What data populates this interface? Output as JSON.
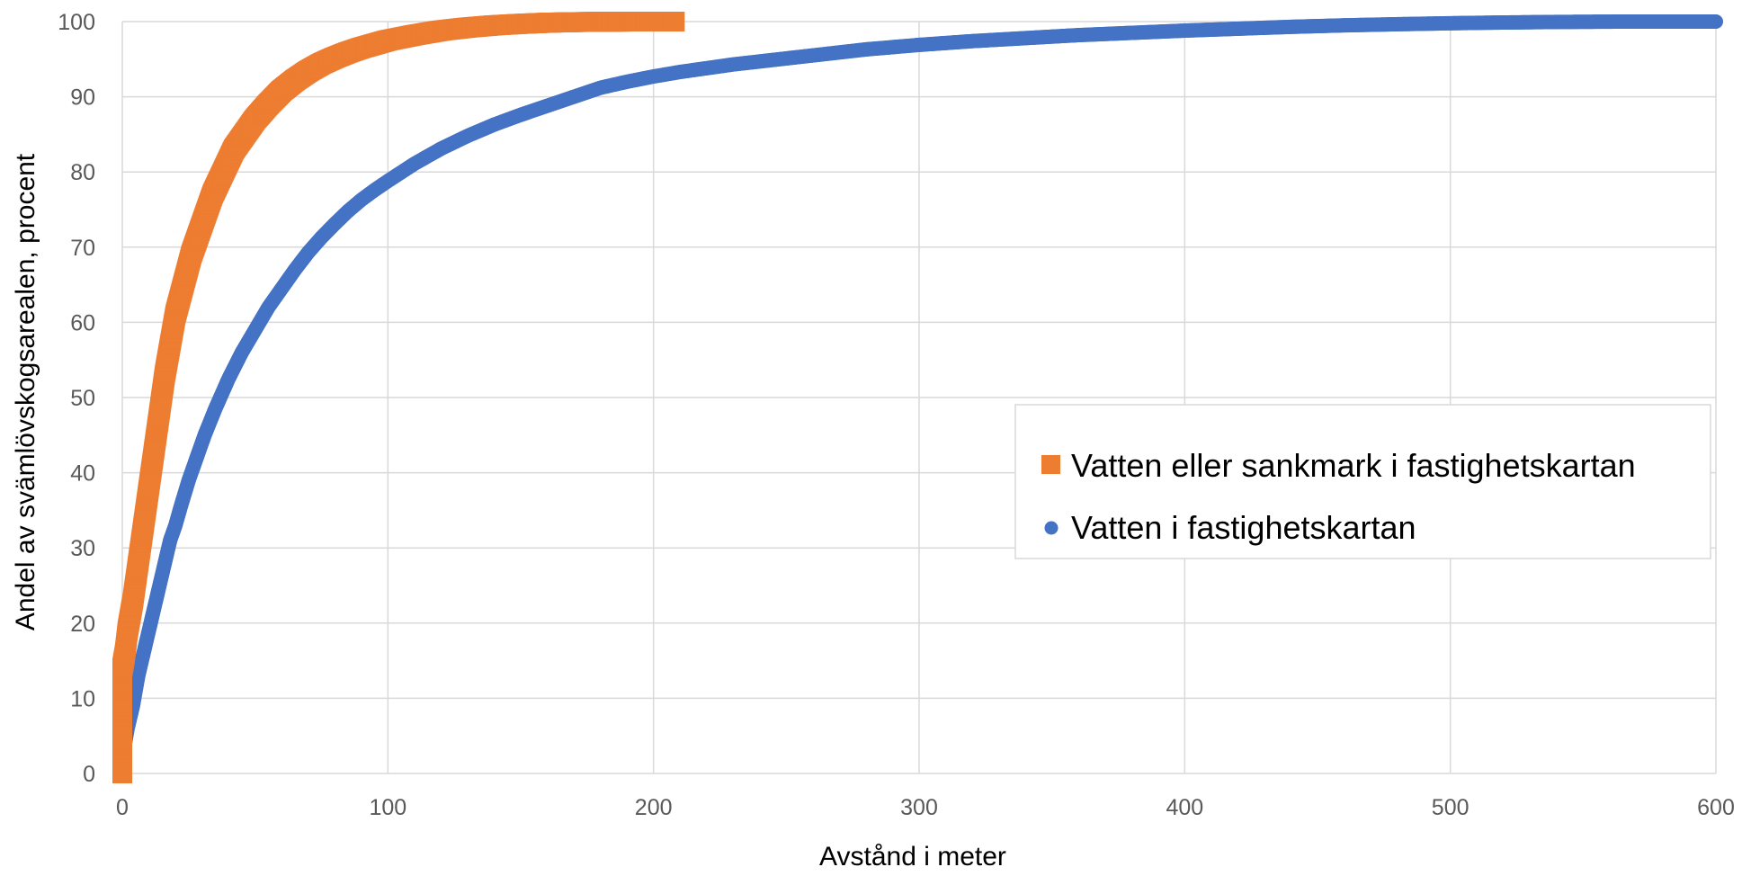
{
  "chart_data": {
    "type": "scatter",
    "title": "",
    "xlabel": "Avstånd i meter",
    "ylabel": "Andel av svämlövskogsarealen, procent",
    "xlim": [
      0,
      600
    ],
    "ylim": [
      0,
      100
    ],
    "x_ticks": [
      0,
      100,
      200,
      300,
      400,
      500,
      600
    ],
    "y_ticks": [
      0,
      10,
      20,
      30,
      40,
      50,
      60,
      70,
      80,
      90,
      100
    ],
    "x_tick_labels": [
      "0",
      "100",
      "200",
      "300",
      "400",
      "500",
      "600"
    ],
    "y_tick_labels": [
      "0",
      "10",
      "20",
      "30",
      "40",
      "50",
      "60",
      "70",
      "80",
      "90",
      "100"
    ],
    "grid": true,
    "legend_position": "center-right",
    "series": [
      {
        "name": "Vatten eller sankmark i fastighetskartan",
        "marker": "square",
        "color": "#ED7D31",
        "points": [
          [
            0,
            0
          ],
          [
            0,
            5
          ],
          [
            0,
            10
          ],
          [
            0,
            14
          ],
          [
            1,
            16
          ],
          [
            2,
            19
          ],
          [
            4,
            23
          ],
          [
            6,
            28
          ],
          [
            8,
            33
          ],
          [
            10,
            38
          ],
          [
            12,
            43
          ],
          [
            14,
            48
          ],
          [
            16,
            53
          ],
          [
            18,
            57
          ],
          [
            20,
            61
          ],
          [
            23,
            65
          ],
          [
            26,
            69
          ],
          [
            30,
            73
          ],
          [
            34,
            77
          ],
          [
            38,
            80
          ],
          [
            42,
            83
          ],
          [
            46,
            85
          ],
          [
            50,
            87
          ],
          [
            55,
            89
          ],
          [
            60,
            90.8
          ],
          [
            65,
            92.2
          ],
          [
            70,
            93.4
          ],
          [
            75,
            94.4
          ],
          [
            80,
            95.2
          ],
          [
            85,
            95.9
          ],
          [
            90,
            96.5
          ],
          [
            95,
            97
          ],
          [
            100,
            97.5
          ],
          [
            110,
            98.2
          ],
          [
            120,
            98.8
          ],
          [
            130,
            99.2
          ],
          [
            140,
            99.5
          ],
          [
            150,
            99.7
          ],
          [
            160,
            99.85
          ],
          [
            170,
            99.93
          ],
          [
            180,
            99.97
          ],
          [
            190,
            100
          ],
          [
            200,
            100
          ],
          [
            208,
            100
          ]
        ]
      },
      {
        "name": "Vatten i fastighetskartan",
        "marker": "circle",
        "color": "#4472C4",
        "points": [
          [
            0,
            0
          ],
          [
            0,
            2
          ],
          [
            1,
            4
          ],
          [
            2,
            6
          ],
          [
            4,
            9
          ],
          [
            6,
            13
          ],
          [
            8,
            16
          ],
          [
            10,
            19
          ],
          [
            12,
            22
          ],
          [
            14,
            25
          ],
          [
            16,
            28
          ],
          [
            18,
            31
          ],
          [
            20,
            33
          ],
          [
            22,
            35.5
          ],
          [
            25,
            39
          ],
          [
            28,
            42
          ],
          [
            31,
            45
          ],
          [
            35,
            48.5
          ],
          [
            40,
            52.5
          ],
          [
            45,
            56
          ],
          [
            50,
            59
          ],
          [
            55,
            62
          ],
          [
            60,
            64.5
          ],
          [
            65,
            67
          ],
          [
            70,
            69.3
          ],
          [
            75,
            71.3
          ],
          [
            80,
            73.1
          ],
          [
            85,
            74.8
          ],
          [
            90,
            76.3
          ],
          [
            95,
            77.6
          ],
          [
            100,
            78.8
          ],
          [
            110,
            81.1
          ],
          [
            120,
            83.1
          ],
          [
            130,
            84.8
          ],
          [
            140,
            86.3
          ],
          [
            150,
            87.6
          ],
          [
            160,
            88.8
          ],
          [
            170,
            90
          ],
          [
            180,
            91.2
          ],
          [
            190,
            92
          ],
          [
            200,
            92.7
          ],
          [
            210,
            93.3
          ],
          [
            220,
            93.8
          ],
          [
            230,
            94.3
          ],
          [
            240,
            94.7
          ],
          [
            250,
            95.1
          ],
          [
            260,
            95.5
          ],
          [
            270,
            95.9
          ],
          [
            280,
            96.3
          ],
          [
            290,
            96.6
          ],
          [
            300,
            96.9
          ],
          [
            320,
            97.4
          ],
          [
            340,
            97.8
          ],
          [
            360,
            98.2
          ],
          [
            380,
            98.5
          ],
          [
            400,
            98.8
          ],
          [
            420,
            99.05
          ],
          [
            440,
            99.3
          ],
          [
            460,
            99.5
          ],
          [
            480,
            99.65
          ],
          [
            500,
            99.78
          ],
          [
            520,
            99.88
          ],
          [
            540,
            99.95
          ],
          [
            555,
            99.98
          ],
          [
            565,
            100
          ],
          [
            575,
            100
          ],
          [
            585,
            100
          ],
          [
            595,
            100
          ],
          [
            600,
            100
          ]
        ]
      }
    ]
  }
}
